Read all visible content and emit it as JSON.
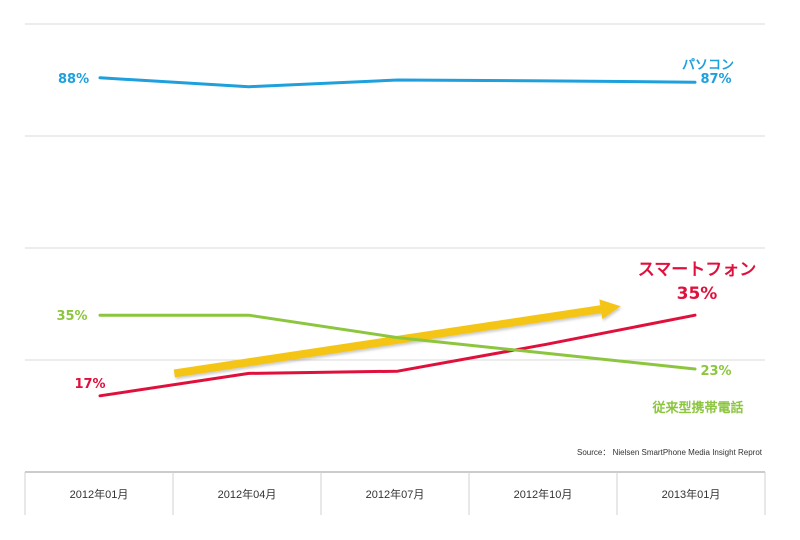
{
  "chart_data": {
    "type": "line",
    "categories": [
      "2012年01月",
      "2012年04月",
      "2012年07月",
      "2012年10月",
      "2013年01月"
    ],
    "ylim": [
      0,
      100
    ],
    "grid": true,
    "series": [
      {
        "name": "パソコン",
        "color": "#1ea0dc",
        "values": [
          88,
          86,
          87.5,
          87.3,
          87
        ],
        "start_label": "88%",
        "end_label": "87%"
      },
      {
        "name": "スマートフォン",
        "color": "#e0103c",
        "values": [
          17,
          22,
          22.5,
          28.5,
          35
        ],
        "start_label": "17%",
        "end_label": "35%"
      },
      {
        "name": "従来型携帯電話",
        "color": "#8cc63f",
        "values": [
          35,
          35,
          30,
          26.5,
          23
        ],
        "start_label": "35%",
        "end_label": "23%"
      }
    ],
    "trend_arrow": {
      "color": "#f5c518",
      "from": {
        "x_index": 0.5,
        "y": 22
      },
      "to": {
        "x_index": 3.5,
        "y": 37
      }
    },
    "source": "Source： Nielsen SmartPhone Media Insight Reprot"
  }
}
